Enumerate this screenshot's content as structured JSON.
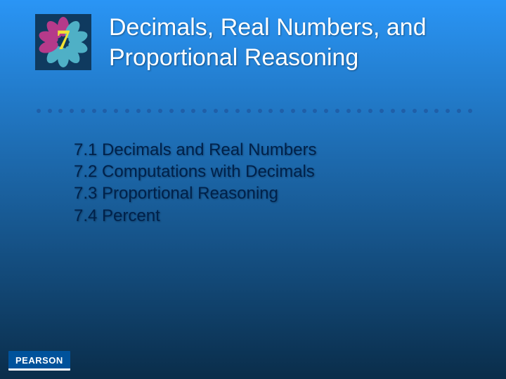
{
  "background": {
    "gradient_top": "#2a95f5",
    "gradient_bottom": "#0a2d4a"
  },
  "chapter_icon": {
    "number": "7",
    "number_color": "#f2e233",
    "number_fontsize": 40,
    "tile_color": "#0f3a5f",
    "petal_colors": [
      "#b53a8a",
      "#4fb0c6",
      "#4fb0c6",
      "#4fb0c6",
      "#4fb0c6",
      "#4fb0c6",
      "#4fb0c6",
      "#b53a8a",
      "#b53a8a",
      "#b53a8a"
    ]
  },
  "title": {
    "text": "Decimals, Real Numbers, and Proportional Reasoning",
    "color": "#ffffff",
    "fontsize": 34
  },
  "divider": {
    "dot_count": 40,
    "dot_color": "#1f5fa8"
  },
  "sections": {
    "color": "#00214a",
    "fontsize": 24,
    "items": [
      "7.1 Decimals and Real Numbers",
      "7.2 Computations with Decimals",
      "7.3 Proportional Reasoning",
      "7.4 Percent"
    ]
  },
  "logo": {
    "text": "PEARSON",
    "bg_color": "#00529b",
    "text_color": "#ffffff"
  }
}
